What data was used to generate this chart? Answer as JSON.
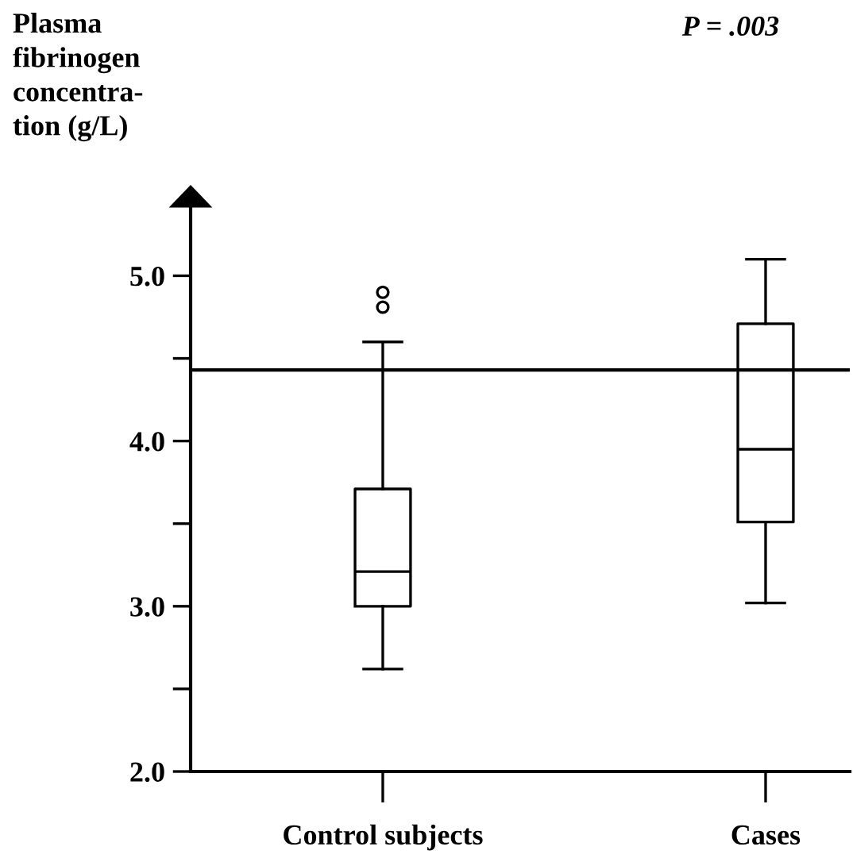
{
  "chart_data": {
    "type": "box",
    "ylabel": "Plasma\nfibrinogen\nconcentra-\ntion (g/L)",
    "annotations": [
      "P = .003"
    ],
    "categories": [
      "Control subjects",
      "Cases"
    ],
    "boxes": [
      {
        "low": 2.62,
        "q1": 3.0,
        "median": 3.21,
        "q3": 3.71,
        "high": 4.6,
        "outliers": [
          4.81,
          4.9
        ]
      },
      {
        "low": 3.02,
        "q1": 3.51,
        "median": 3.95,
        "q3": 4.71,
        "high": 5.1
      }
    ],
    "ylim": [
      2.0,
      5.42
    ],
    "yticks": [
      {
        "value": 2.0,
        "label": "2.0"
      },
      {
        "value": 2.5,
        "label": null
      },
      {
        "value": 3.0,
        "label": "3.0"
      },
      {
        "value": 3.5,
        "label": null
      },
      {
        "value": 4.0,
        "label": "4.0"
      },
      {
        "value": 4.5,
        "label": null
      },
      {
        "value": 5.0,
        "label": "5.0"
      }
    ],
    "ref_lines": [
      {
        "axis": "y",
        "value": 4.43,
        "color": "#000000"
      }
    ],
    "grid": false,
    "legend": false
  }
}
